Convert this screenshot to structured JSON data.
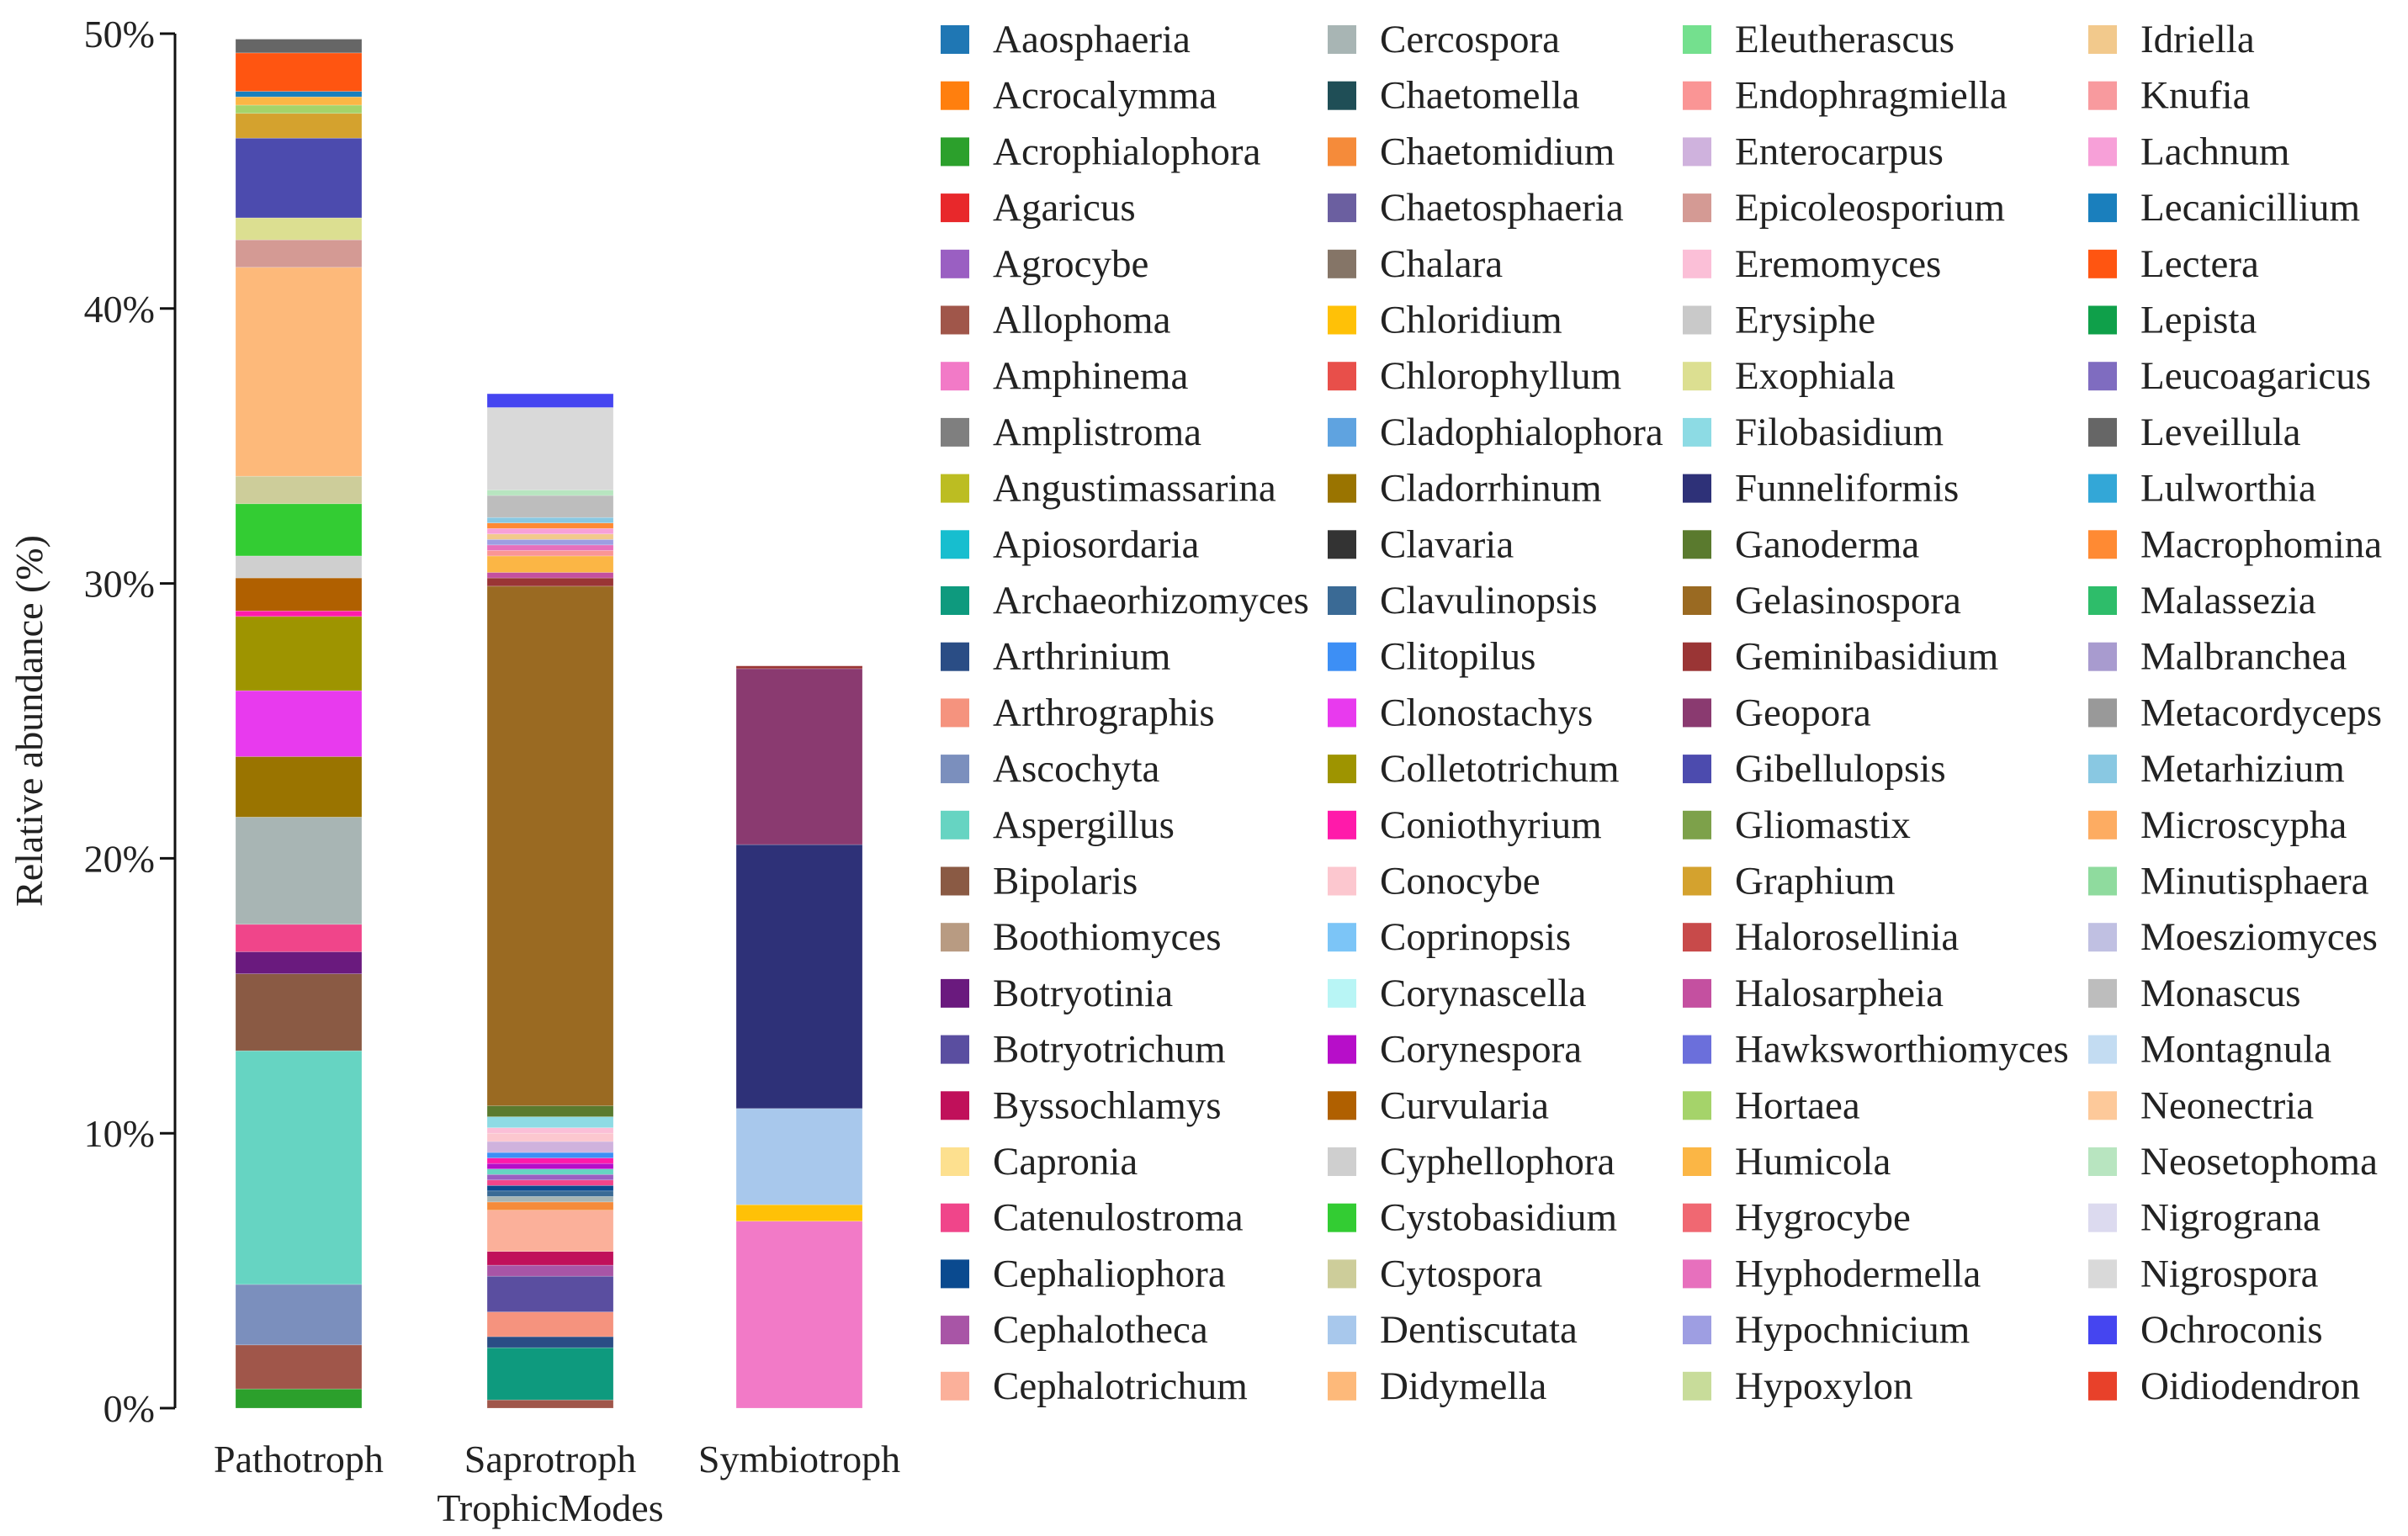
{
  "chart_data": {
    "type": "stacked-bar",
    "xlabel": "TrophicModes",
    "ylabel": "Relative abundance (%)",
    "ylim": [
      0,
      50
    ],
    "yticks": [
      0,
      10,
      20,
      30,
      40,
      50
    ],
    "ytick_labels": [
      "0%",
      "10%",
      "20%",
      "30%",
      "40%",
      "50%"
    ],
    "categories": [
      "Pathotroph",
      "Saprotroph",
      "Symbiotroph"
    ],
    "legend": {
      "placement": "right",
      "columns": 4,
      "items": [
        {
          "name": "Aaosphaeria",
          "color": "#1f77b4"
        },
        {
          "name": "Acrocalymma",
          "color": "#ff7f0e"
        },
        {
          "name": "Acrophialophora",
          "color": "#2ca02c"
        },
        {
          "name": "Agaricus",
          "color": "#e8282b"
        },
        {
          "name": "Agrocybe",
          "color": "#9a5fc2"
        },
        {
          "name": "Allophoma",
          "color": "#a0564a"
        },
        {
          "name": "Amphinema",
          "color": "#f27ac7"
        },
        {
          "name": "Amplistroma",
          "color": "#7f7f7f"
        },
        {
          "name": "Angustimassarina",
          "color": "#bcbd22"
        },
        {
          "name": "Apiosordaria",
          "color": "#17becf"
        },
        {
          "name": "Archaeorhizomyces",
          "color": "#0e9a7e"
        },
        {
          "name": "Arthrinium",
          "color": "#2a4d85"
        },
        {
          "name": "Arthrographis",
          "color": "#f5937e"
        },
        {
          "name": "Ascochyta",
          "color": "#7b8fbd"
        },
        {
          "name": "Aspergillus",
          "color": "#66d4c2"
        },
        {
          "name": "Bipolaris",
          "color": "#8a5a44"
        },
        {
          "name": "Boothiomyces",
          "color": "#b89b82"
        },
        {
          "name": "Botryotinia",
          "color": "#6a1a7e"
        },
        {
          "name": "Botryotrichum",
          "color": "#5a4ea0"
        },
        {
          "name": "Byssochlamys",
          "color": "#c0105a"
        },
        {
          "name": "Capronia",
          "color": "#fde08f"
        },
        {
          "name": "Catenulostroma",
          "color": "#f0458a"
        },
        {
          "name": "Cephaliophora",
          "color": "#0a4a8f"
        },
        {
          "name": "Cephalotheca",
          "color": "#a855a6"
        },
        {
          "name": "Cephalotrichum",
          "color": "#fbb09a"
        },
        {
          "name": "Cercospora",
          "color": "#a8b5b4"
        },
        {
          "name": "Chaetomella",
          "color": "#1f4e56"
        },
        {
          "name": "Chaetomidium",
          "color": "#f58b3a"
        },
        {
          "name": "Chaetosphaeria",
          "color": "#6b5fa0"
        },
        {
          "name": "Chalara",
          "color": "#857567"
        },
        {
          "name": "Chloridium",
          "color": "#ffc107"
        },
        {
          "name": "Chlorophyllum",
          "color": "#e84f4a"
        },
        {
          "name": "Cladophialophora",
          "color": "#5fa3e0"
        },
        {
          "name": "Cladorrhinum",
          "color": "#9a7400"
        },
        {
          "name": "Clavaria",
          "color": "#333333"
        },
        {
          "name": "Clavulinopsis",
          "color": "#3a6a95"
        },
        {
          "name": "Clitopilus",
          "color": "#3d8ff5"
        },
        {
          "name": "Clonostachys",
          "color": "#e83aee"
        },
        {
          "name": "Colletotrichum",
          "color": "#9e9400"
        },
        {
          "name": "Coniothyrium",
          "color": "#ff1aaa"
        },
        {
          "name": "Conocybe",
          "color": "#fcc7cf"
        },
        {
          "name": "Coprinopsis",
          "color": "#7cc5f7"
        },
        {
          "name": "Corynascella",
          "color": "#b8f5f5"
        },
        {
          "name": "Corynespora",
          "color": "#b70ec9"
        },
        {
          "name": "Curvularia",
          "color": "#b06000"
        },
        {
          "name": "Cyphellophora",
          "color": "#cfcfcf"
        },
        {
          "name": "Cystobasidium",
          "color": "#33cc33"
        },
        {
          "name": "Cytospora",
          "color": "#cdcd9a"
        },
        {
          "name": "Dentiscutata",
          "color": "#a8c8ec"
        },
        {
          "name": "Didymella",
          "color": "#fdb97a"
        },
        {
          "name": "Eleutherascus",
          "color": "#74e08e"
        },
        {
          "name": "Endophragmiella",
          "color": "#fa9595"
        },
        {
          "name": "Enterocarpus",
          "color": "#cfb2dd"
        },
        {
          "name": "Epicoleosporium",
          "color": "#d49a94"
        },
        {
          "name": "Eremomyces",
          "color": "#fbbfd7"
        },
        {
          "name": "Erysiphe",
          "color": "#c9c9c9"
        },
        {
          "name": "Exophiala",
          "color": "#dcdf91"
        },
        {
          "name": "Filobasidium",
          "color": "#8ddbe4"
        },
        {
          "name": "Funneliformis",
          "color": "#2e3178"
        },
        {
          "name": "Ganoderma",
          "color": "#5a7a2e"
        },
        {
          "name": "Gelasinospora",
          "color": "#9a6a22"
        },
        {
          "name": "Geminibasidium",
          "color": "#9a3535"
        },
        {
          "name": "Geopora",
          "color": "#8a3a70"
        },
        {
          "name": "Gibellulopsis",
          "color": "#4c4bae"
        },
        {
          "name": "Gliomastix",
          "color": "#7da14a"
        },
        {
          "name": "Graphium",
          "color": "#d4a22e"
        },
        {
          "name": "Halorosellinia",
          "color": "#c84a4a"
        },
        {
          "name": "Halosarpheia",
          "color": "#c450a0"
        },
        {
          "name": "Hawksworthiomyces",
          "color": "#6b6fdb"
        },
        {
          "name": "Hortaea",
          "color": "#a5d36a"
        },
        {
          "name": "Humicola",
          "color": "#fbb645"
        },
        {
          "name": "Hygrocybe",
          "color": "#f06872"
        },
        {
          "name": "Hyphodermella",
          "color": "#e770bd"
        },
        {
          "name": "Hypochnicium",
          "color": "#9e9ee2"
        },
        {
          "name": "Hypoxylon",
          "color": "#c8dc9a"
        },
        {
          "name": "Idriella",
          "color": "#f2c98c"
        },
        {
          "name": "Knufia",
          "color": "#f89a9e"
        },
        {
          "name": "Lachnum",
          "color": "#f7a0d8"
        },
        {
          "name": "Lecanicillium",
          "color": "#1a7fbd"
        },
        {
          "name": "Lectera",
          "color": "#ff5511"
        },
        {
          "name": "Lepista",
          "color": "#0fa04a"
        },
        {
          "name": "Leucoagaricus",
          "color": "#7f6cc0"
        },
        {
          "name": "Leveillula",
          "color": "#666666"
        },
        {
          "name": "Lulworthia",
          "color": "#33a7d7"
        },
        {
          "name": "Macrophomina",
          "color": "#ff8a33"
        },
        {
          "name": "Malassezia",
          "color": "#2ebd6a"
        },
        {
          "name": "Malbranchea",
          "color": "#a89bcf"
        },
        {
          "name": "Metacordyceps",
          "color": "#999999"
        },
        {
          "name": "Metarhizium",
          "color": "#89c8e2"
        },
        {
          "name": "Microscypha",
          "color": "#fdac62"
        },
        {
          "name": "Minutisphaera",
          "color": "#8fdb9e"
        },
        {
          "name": "Moesziomyces",
          "color": "#c0c0e2"
        },
        {
          "name": "Monascus",
          "color": "#bdbdbd"
        },
        {
          "name": "Montagnula",
          "color": "#c3dcf2"
        },
        {
          "name": "Neonectria",
          "color": "#fdc99a"
        },
        {
          "name": "Neosetophoma",
          "color": "#b8e5c0"
        },
        {
          "name": "Nigrograna",
          "color": "#dcdaef"
        },
        {
          "name": "Nigrospora",
          "color": "#d9d9d9"
        },
        {
          "name": "Ochroconis",
          "color": "#4545f0"
        },
        {
          "name": "Oidiodendron",
          "color": "#e8412a"
        }
      ]
    },
    "series": [
      {
        "category": "Pathotroph",
        "segments": [
          {
            "genus": "Acrophialophora",
            "value": 0.7
          },
          {
            "genus": "Allophoma",
            "value": 1.6
          },
          {
            "genus": "Ascochyta",
            "value": 2.2
          },
          {
            "genus": "Aspergillus",
            "value": 8.5
          },
          {
            "genus": "Bipolaris",
            "value": 2.8
          },
          {
            "genus": "Botryotinia",
            "value": 0.8
          },
          {
            "genus": "Catenulostroma",
            "value": 1.0
          },
          {
            "genus": "Cercospora",
            "value": 3.9
          },
          {
            "genus": "Cladorrhinum",
            "value": 2.2
          },
          {
            "genus": "Clonostachys",
            "value": 2.4
          },
          {
            "genus": "Colletotrichum",
            "value": 2.7
          },
          {
            "genus": "Coniothyrium",
            "value": 0.2
          },
          {
            "genus": "Curvularia",
            "value": 1.2
          },
          {
            "genus": "Cyphellophora",
            "value": 0.8
          },
          {
            "genus": "Cystobasidium",
            "value": 1.9
          },
          {
            "genus": "Cytospora",
            "value": 1.0
          },
          {
            "genus": "Didymella",
            "value": 7.6
          },
          {
            "genus": "Epicoleosporium",
            "value": 1.0
          },
          {
            "genus": "Exophiala",
            "value": 0.8
          },
          {
            "genus": "Gibellulopsis",
            "value": 2.9
          },
          {
            "genus": "Graphium",
            "value": 0.9
          },
          {
            "genus": "Hortaea",
            "value": 0.3
          },
          {
            "genus": "Humicola",
            "value": 0.3
          },
          {
            "genus": "Lecanicillium",
            "value": 0.2
          },
          {
            "genus": "Lectera",
            "value": 1.4
          },
          {
            "genus": "Leveillula",
            "value": 0.5
          }
        ]
      },
      {
        "category": "Saprotroph",
        "segments": [
          {
            "genus": "Allophoma",
            "value": 0.3
          },
          {
            "genus": "Archaeorhizomyces",
            "value": 1.9
          },
          {
            "genus": "Arthrinium",
            "value": 0.4
          },
          {
            "genus": "Arthrographis",
            "value": 0.9
          },
          {
            "genus": "Botryotrichum",
            "value": 1.3
          },
          {
            "genus": "Cephalotheca",
            "value": 0.4
          },
          {
            "genus": "Byssochlamys",
            "value": 0.5
          },
          {
            "genus": "Cephalotrichum",
            "value": 1.5
          },
          {
            "genus": "Chaetomidium",
            "value": 0.3
          },
          {
            "genus": "Cercospora",
            "value": 0.2
          },
          {
            "genus": "Clavulinopsis",
            "value": 0.2
          },
          {
            "genus": "Cephaliophora",
            "value": 0.2
          },
          {
            "genus": "Catenulostroma",
            "value": 0.2
          },
          {
            "genus": "Agrocybe",
            "value": 0.2
          },
          {
            "genus": "Aspergillus",
            "value": 0.2
          },
          {
            "genus": "Corynespora",
            "value": 0.2
          },
          {
            "genus": "Coniothyrium",
            "value": 0.2
          },
          {
            "genus": "Clitopilus",
            "value": 0.2
          },
          {
            "genus": "Enterocarpus",
            "value": 0.4
          },
          {
            "genus": "Conocybe",
            "value": 0.3
          },
          {
            "genus": "Eremomyces",
            "value": 0.2
          },
          {
            "genus": "Filobasidium",
            "value": 0.4
          },
          {
            "genus": "Ganoderma",
            "value": 0.4
          },
          {
            "genus": "Gelasinospora",
            "value": 18.9
          },
          {
            "genus": "Geminibasidium",
            "value": 0.3
          },
          {
            "genus": "Halosarpheia",
            "value": 0.2
          },
          {
            "genus": "Humicola",
            "value": 0.6
          },
          {
            "genus": "Endophragmiella",
            "value": 0.2
          },
          {
            "genus": "Hyphodermella",
            "value": 0.2
          },
          {
            "genus": "Hypochnicium",
            "value": 0.2
          },
          {
            "genus": "Idriella",
            "value": 0.2
          },
          {
            "genus": "Lachnum",
            "value": 0.2
          },
          {
            "genus": "Macrophomina",
            "value": 0.2
          },
          {
            "genus": "Metarhizium",
            "value": 0.2
          },
          {
            "genus": "Monascus",
            "value": 0.8
          },
          {
            "genus": "Neosetophoma",
            "value": 0.2
          },
          {
            "genus": "Nigrospora",
            "value": 3.0
          },
          {
            "genus": "Ochroconis",
            "value": 0.5
          }
        ]
      },
      {
        "category": "Symbiotroph",
        "segments": [
          {
            "genus": "Amphinema",
            "value": 6.8
          },
          {
            "genus": "Chloridium",
            "value": 0.6
          },
          {
            "genus": "Dentiscutata",
            "value": 3.5
          },
          {
            "genus": "Funneliformis",
            "value": 9.6
          },
          {
            "genus": "Geopora",
            "value": 6.4
          },
          {
            "genus": "Geminibasidium",
            "value": 0.1
          }
        ]
      }
    ]
  }
}
